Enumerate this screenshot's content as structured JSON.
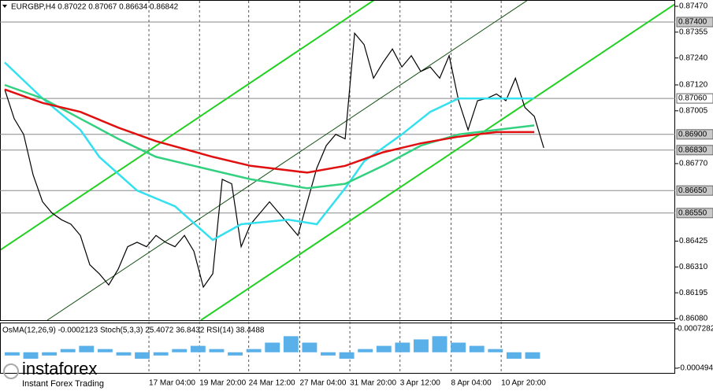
{
  "chart_data": {
    "type": "line",
    "title": "EURGBP,H4 0.87022 0.87067 0.86634 0.86842",
    "x": [
      0,
      1,
      2,
      3,
      4,
      5,
      6,
      7,
      8,
      9,
      10,
      11,
      12,
      13,
      14,
      15,
      16,
      17,
      18,
      19,
      20,
      21,
      22,
      23,
      24,
      25,
      26,
      27,
      28,
      29,
      30,
      31,
      32,
      33,
      34,
      35,
      36,
      37,
      38,
      39,
      40,
      41,
      42,
      43,
      44,
      45,
      46,
      47,
      48,
      49,
      50,
      51,
      52,
      53,
      54,
      55,
      56,
      57
    ],
    "series": [
      {
        "name": "EURGBP",
        "color": "#000000",
        "values": [
          0.871,
          0.8697,
          0.869,
          0.8672,
          0.866,
          0.8655,
          0.8652,
          0.865,
          0.8645,
          0.8632,
          0.8628,
          0.8623,
          0.863,
          0.864,
          0.8642,
          0.864,
          0.8645,
          0.8642,
          0.864,
          0.8645,
          0.8638,
          0.8622,
          0.8628,
          0.867,
          0.8668,
          0.864,
          0.865,
          0.8655,
          0.866,
          0.8655,
          0.865,
          0.8645,
          0.866,
          0.8675,
          0.8685,
          0.869,
          0.8688,
          0.8735,
          0.873,
          0.8715,
          0.8722,
          0.8728,
          0.872,
          0.8725,
          0.8718,
          0.872,
          0.8715,
          0.8725,
          0.8705,
          0.8692,
          0.8705,
          0.8706,
          0.8708,
          0.8705,
          0.8715,
          0.8702,
          0.8698,
          0.8684
        ]
      },
      {
        "color": "#33e0f0",
        "x": [
          0,
          4,
          8,
          10,
          14,
          18,
          22,
          25,
          30,
          33,
          36,
          38,
          42,
          45,
          48,
          52,
          56
        ],
        "values": [
          0.8722,
          0.8706,
          0.8692,
          0.868,
          0.8665,
          0.8658,
          0.8643,
          0.865,
          0.8652,
          0.865,
          0.8666,
          0.8678,
          0.869,
          0.87,
          0.8706,
          0.8706,
          0.8706
        ]
      },
      {
        "color": "#33d080",
        "x": [
          0,
          4,
          8,
          12,
          16,
          20,
          26,
          32,
          36,
          40,
          44,
          48,
          52,
          56
        ],
        "values": [
          0.8712,
          0.8706,
          0.8697,
          0.8688,
          0.868,
          0.8676,
          0.867,
          0.8666,
          0.8668,
          0.8676,
          0.8685,
          0.869,
          0.8692,
          0.8694
        ]
      },
      {
        "color": "#e01010",
        "x": [
          0,
          4,
          8,
          12,
          16,
          22,
          26,
          32,
          36,
          40,
          44,
          48,
          52,
          56
        ],
        "values": [
          0.871,
          0.8704,
          0.87,
          0.8693,
          0.8687,
          0.868,
          0.8676,
          0.8673,
          0.8676,
          0.8682,
          0.8686,
          0.8689,
          0.8691,
          0.8691
        ]
      }
    ],
    "xlim": [
      -0.5,
      70.9
    ],
    "xticks": [
      {
        "value": 15.25,
        "label": "17 Mar 04:00"
      },
      {
        "value": 20.6,
        "label": "19 Mar 20:00"
      },
      {
        "value": 25.8,
        "label": "24 Mar 12:00"
      },
      {
        "value": 31.2,
        "label": "27 Mar 04:00"
      },
      {
        "value": 36.5,
        "label": "31 Mar 20:00"
      },
      {
        "value": 41.8,
        "label": "3 Apr 12:00"
      },
      {
        "value": 47.2,
        "label": "8 Apr 04:00"
      },
      {
        "value": 52.5,
        "label": "10 Apr 20:00"
      }
    ],
    "ylim": [
      0.8608,
      0.8747
    ],
    "yticks": [
      {
        "value": 0.8747,
        "label": "0.87470"
      },
      {
        "value": 0.87355,
        "label": "0.87355"
      },
      {
        "value": 0.8724,
        "label": "0.87240"
      },
      {
        "value": 0.8712,
        "label": "0.87120"
      },
      {
        "value": 0.87005,
        "label": "0.87005"
      },
      {
        "value": 0.8677,
        "label": "0.86770"
      },
      {
        "value": 0.86425,
        "label": "0.86425"
      },
      {
        "value": 0.8631,
        "label": "0.86310"
      },
      {
        "value": 0.86195,
        "label": "0.86195"
      },
      {
        "value": 0.8608,
        "label": "0.86080"
      }
    ],
    "levels": [
      {
        "value": 0.874,
        "label": "0.87400"
      },
      {
        "value": 0.8706,
        "label": "0.87060"
      },
      {
        "value": 0.869,
        "label": "0.86900"
      },
      {
        "value": 0.8683,
        "label": "0.86830"
      },
      {
        "value": 0.8665,
        "label": "0.86650"
      },
      {
        "value": 0.8655,
        "label": "0.86550"
      }
    ],
    "indicator": {
      "title": "OsMA(12,26,9) -0.0002123 Stoch(5,3,3) 25.4072 36.8432 RSI(14) 38.4488",
      "ylim": [
        -0.0004945,
        0.0007282
      ],
      "yticks": [
        {
          "value": 0.0007282,
          "label": "0.0007282"
        },
        {
          "value": -0.0004945,
          "label": "-0.0004945"
        }
      ],
      "color": "#5ab0e8",
      "values": [
        -0.0001,
        -0.0002,
        -0.0001,
        0.0001,
        0.0002,
        0.0001,
        -0.0001,
        -0.0002,
        -0.0001,
        0.0001,
        0.0002,
        0.0001,
        -0.0001,
        0.0001,
        0.0003,
        0.0005,
        0.0003,
        -0.0001,
        -0.0002,
        0.0001,
        0.0002,
        0.0003,
        0.0004,
        0.0005,
        0.0003,
        0.0002,
        0.0001,
        -0.0002,
        -0.0002
      ]
    },
    "logo": "instaforex",
    "tagline": "Instant Forex Trading"
  }
}
